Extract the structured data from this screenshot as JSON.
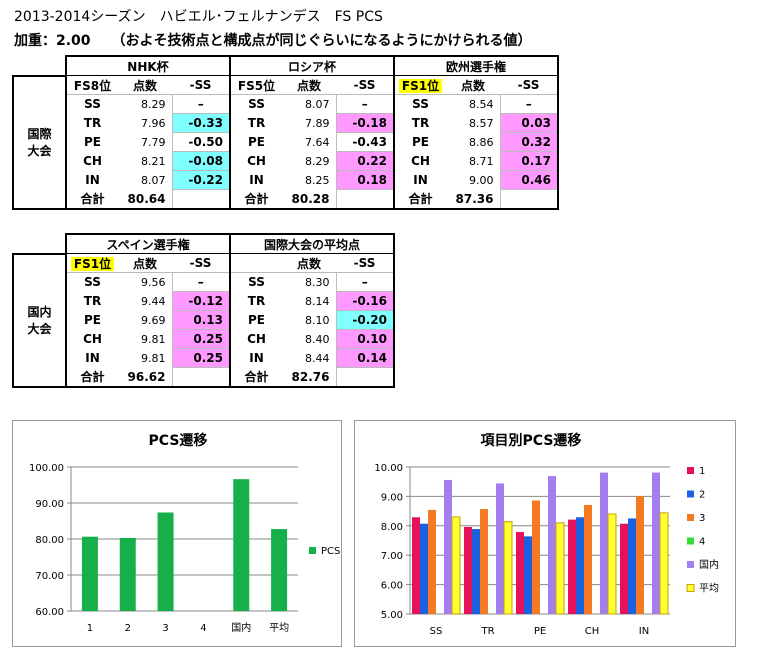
{
  "title_line1": "2013-2014シーズン　ハビエル･フェルナンデス　FS PCS",
  "title_line2": "加重：2.00　　（およそ技術点と構成点が同じぐらいになるようにかけられる値）",
  "intl_label": [
    "国際",
    "大会"
  ],
  "domestic_label": [
    "国内",
    "大会"
  ],
  "col_headers": [
    "点数",
    "-SS"
  ],
  "rows": [
    "SS",
    "TR",
    "PE",
    "CH",
    "IN",
    "合計"
  ],
  "table_intl": [
    {
      "name": "NHK杯",
      "place": "FS8位",
      "place_highlight": false,
      "scores": [
        "8.29",
        "7.96",
        "7.79",
        "8.21",
        "8.07"
      ],
      "total": "80.64",
      "diffs": [
        "–",
        "-0.33",
        "-0.50",
        "-0.08",
        "-0.22"
      ],
      "diff_colors": [
        "",
        "cyan",
        "",
        "cyan",
        "cyan"
      ]
    },
    {
      "name": "ロシア杯",
      "place": "FS5位",
      "place_highlight": false,
      "scores": [
        "8.07",
        "7.89",
        "7.64",
        "8.29",
        "8.25"
      ],
      "total": "80.28",
      "diffs": [
        "–",
        "-0.18",
        "-0.43",
        "0.22",
        "0.18"
      ],
      "diff_colors": [
        "",
        "pink",
        "",
        "pink",
        "pink"
      ]
    },
    {
      "name": "欧州選手権",
      "place": "FS1位",
      "place_highlight": true,
      "scores": [
        "8.54",
        "8.57",
        "8.86",
        "8.71",
        "9.00"
      ],
      "total": "87.36",
      "diffs": [
        "–",
        "0.03",
        "0.32",
        "0.17",
        "0.46"
      ],
      "diff_colors": [
        "",
        "pink",
        "pink",
        "pink",
        "pink"
      ]
    }
  ],
  "table_dom": [
    {
      "name": "スペイン選手権",
      "place": "FS1位",
      "place_highlight": true,
      "scores": [
        "9.56",
        "9.44",
        "9.69",
        "9.81",
        "9.81"
      ],
      "total": "96.62",
      "diffs": [
        "–",
        "-0.12",
        "0.13",
        "0.25",
        "0.25"
      ],
      "diff_colors": [
        "",
        "pink",
        "pink",
        "pink",
        "pink"
      ]
    },
    {
      "name": "国際大会の平均点",
      "place": "",
      "place_highlight": false,
      "scores": [
        "8.30",
        "8.14",
        "8.10",
        "8.40",
        "8.44"
      ],
      "total": "82.76",
      "diffs": [
        "–",
        "-0.16",
        "-0.20",
        "0.10",
        "0.14"
      ],
      "diff_colors": [
        "",
        "pink",
        "cyan",
        "pink",
        "pink"
      ]
    }
  ],
  "colors": {
    "cyan": "#7fffff",
    "pink": "#ff99ff",
    "yellow": "#ffff00"
  },
  "chart_data": [
    {
      "type": "bar",
      "title": "PCS遷移",
      "categories": [
        "1",
        "2",
        "3",
        "4",
        "国内",
        "平均"
      ],
      "series": [
        {
          "name": "PCS",
          "color": "#16b04a",
          "values": [
            80.64,
            80.28,
            87.36,
            null,
            96.62,
            82.76
          ]
        }
      ],
      "ylim": [
        60,
        100
      ],
      "yticks": [
        "60.00",
        "70.00",
        "80.00",
        "90.00",
        "100.00"
      ],
      "legend": "right",
      "grid": true
    },
    {
      "type": "bar",
      "title": "項目別PCS遷移",
      "categories": [
        "SS",
        "TR",
        "PE",
        "CH",
        "IN"
      ],
      "series": [
        {
          "name": "1",
          "color": "#e6115a",
          "values": [
            8.29,
            7.96,
            7.79,
            8.21,
            8.07
          ]
        },
        {
          "name": "2",
          "color": "#1a60e0",
          "values": [
            8.07,
            7.89,
            7.64,
            8.29,
            8.25
          ]
        },
        {
          "name": "3",
          "color": "#f57a22",
          "values": [
            8.54,
            8.57,
            8.86,
            8.71,
            9.0
          ]
        },
        {
          "name": "4",
          "color": "#33dd33",
          "values": [
            null,
            null,
            null,
            null,
            null
          ]
        },
        {
          "name": "国内",
          "color": "#a27ef0",
          "values": [
            9.56,
            9.44,
            9.69,
            9.81,
            9.81
          ]
        },
        {
          "name": "平均",
          "color": "#ffff33",
          "stroke": "#c8a000",
          "values": [
            8.3,
            8.14,
            8.1,
            8.4,
            8.44
          ]
        }
      ],
      "ylim": [
        5,
        10
      ],
      "yticks": [
        "5.00",
        "6.00",
        "7.00",
        "8.00",
        "9.00",
        "10.00"
      ],
      "legend": "right",
      "grid": true
    }
  ]
}
